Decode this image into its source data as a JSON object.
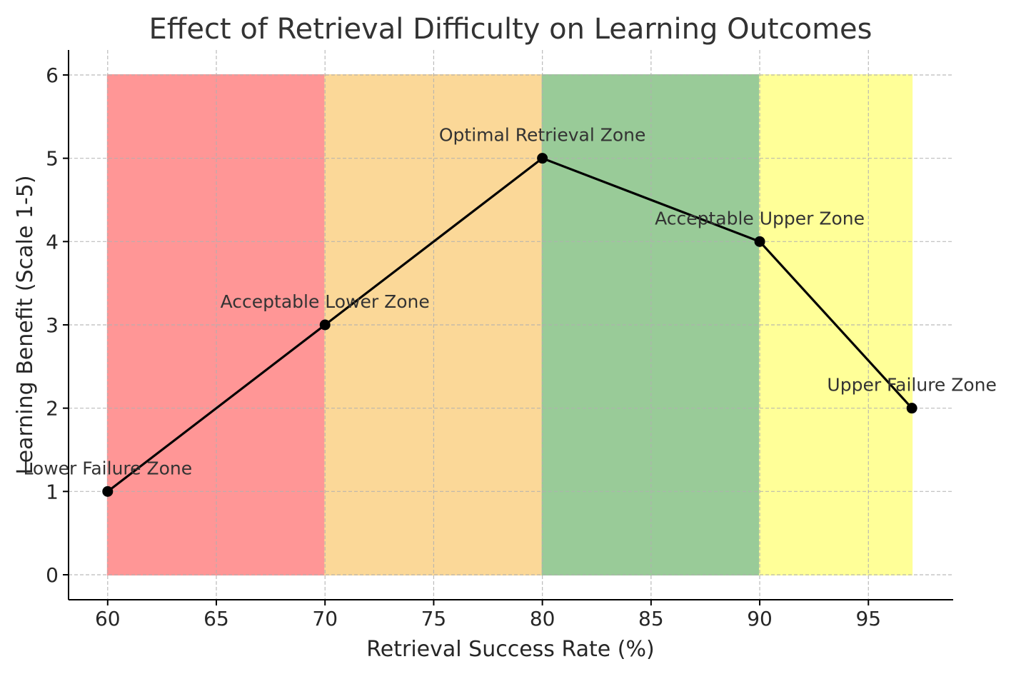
{
  "chart_data": {
    "type": "line",
    "title": "Effect of Retrieval Difficulty on Learning Outcomes",
    "xlabel": "Retrieval Success Rate (%)",
    "ylabel": "Learning Benefit (Scale 1-5)",
    "xlim": [
      58.2,
      98.9
    ],
    "ylim": [
      -0.3,
      6.3
    ],
    "xticks": [
      60,
      65,
      70,
      75,
      80,
      85,
      90,
      95
    ],
    "yticks": [
      0,
      1,
      2,
      3,
      4,
      5,
      6
    ],
    "grid": true,
    "series": [
      {
        "x": [
          60,
          70,
          80,
          90,
          97
        ],
        "y": [
          1,
          3,
          5,
          4,
          2
        ],
        "color": "#000000",
        "marker": "circle"
      }
    ],
    "point_labels": [
      "Lower Failure Zone",
      "Acceptable Lower Zone",
      "Optimal Retrieval Zone",
      "Acceptable Upper Zone",
      "Upper Failure Zone"
    ],
    "zones": [
      {
        "x_start": 60,
        "x_end": 70,
        "y_start": 0,
        "y_end": 6,
        "color": "#ff9696"
      },
      {
        "x_start": 70,
        "x_end": 80,
        "y_start": 0,
        "y_end": 6,
        "color": "#fbd898"
      },
      {
        "x_start": 80,
        "x_end": 90,
        "y_start": 0,
        "y_end": 6,
        "color": "#99cb98"
      },
      {
        "x_start": 90,
        "x_end": 97,
        "y_start": 0,
        "y_end": 6,
        "color": "#ffff98"
      }
    ],
    "colors": {
      "axis": "#000000",
      "grid": "#b0b0b0",
      "text": "#262626",
      "annotation": "#333333"
    }
  }
}
